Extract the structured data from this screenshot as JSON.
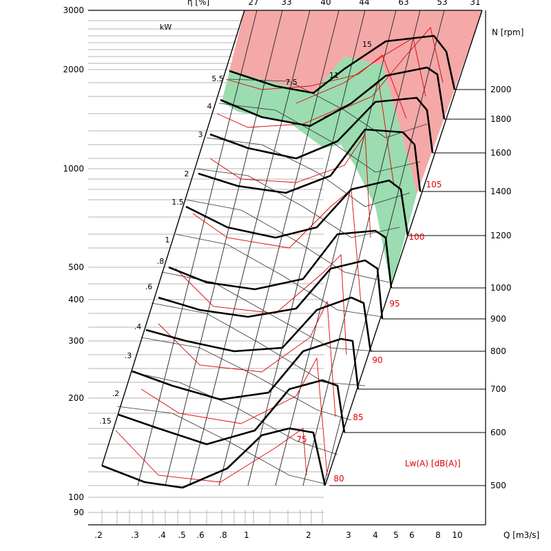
{
  "chart_data": {
    "type": "line",
    "title": "",
    "xlabel": "Q [m3/s]",
    "ylabel": "",
    "xscale": "log",
    "yscale": "log",
    "xlim": [
      0.2,
      12
    ],
    "ylim": [
      80,
      3000
    ],
    "grid": true,
    "x_ticks": [
      ".2",
      ".3",
      ".4",
      ".5",
      ".6",
      ".8",
      "1",
      "2",
      "3",
      "4",
      "5",
      "6",
      "8",
      "10"
    ],
    "y_ticks": [
      "90",
      "100",
      "200",
      "300",
      "400",
      "500",
      "1000",
      "2000",
      "3000"
    ],
    "efficiency": {
      "label": "η [%]",
      "values": [
        "27",
        "33",
        "40",
        "44",
        "63",
        "53",
        "31"
      ]
    },
    "power": {
      "unit_label": "kW",
      "values": [
        ".15",
        ".2",
        ".3",
        ".4",
        ".6",
        ".8",
        "1",
        "1.5",
        "2",
        "3",
        "4",
        "5.5",
        "7.5",
        "11",
        "15"
      ]
    },
    "speed": {
      "axis_label": "N [rpm]",
      "values": [
        "500",
        "600",
        "700",
        "800",
        "900",
        "1000",
        "1200",
        "1400",
        "1600",
        "1800",
        "2000"
      ]
    },
    "sound": {
      "label": "Lw(A)  [dB(A)]",
      "values": [
        "75",
        "80",
        "85",
        "90",
        "95",
        "100",
        "105"
      ]
    },
    "series": [],
    "colors": {
      "high_zone": "#f4a8a8",
      "best_zone": "#9bdcb0",
      "sound_curves": "#e00000",
      "speed_curves": "#000000"
    }
  }
}
